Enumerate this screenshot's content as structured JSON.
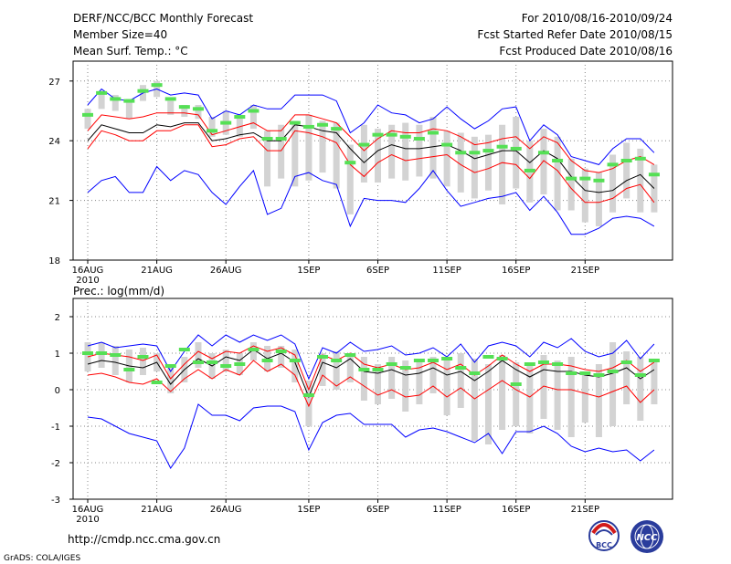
{
  "header": {
    "title": "DERF/NCC/BCC Monthly Forecast",
    "member_size": "Member Size=40",
    "variable": "Mean Surf. Temp.: °C",
    "period": "For 2010/08/16-2010/09/24",
    "started": "Fcst Started Refer Date 2010/08/15",
    "produced": "Fcst Produced Date 2010/08/16"
  },
  "footer": {
    "url": "http://cmdp.ncc.cma.gov.cn",
    "credit": "GrADS: COLA/IGES",
    "logo_bcc": "BCC",
    "logo_ncc": "NCC"
  },
  "colors": {
    "box": "#d3d3d3",
    "member": "#55e055",
    "mean": "#000000",
    "inner": "#ff0000",
    "outer": "#0000ff",
    "grid": "#888888"
  },
  "chart_data": [
    {
      "type": "line",
      "title": "Mean Surf. Temp.: °C",
      "x_tick_labels": [
        "16AUG",
        "21AUG",
        "26AUG",
        "1SEP",
        "6SEP",
        "11SEP",
        "16SEP",
        "21SEP"
      ],
      "x_tick_days": [
        0,
        5,
        10,
        16,
        21,
        26,
        31,
        36
      ],
      "x_year_label": "2010",
      "ylim": [
        18,
        28
      ],
      "yticks": [
        18,
        21,
        24,
        27
      ],
      "series": [
        {
          "name": "ensemble mean",
          "values": [
            24.0,
            24.8,
            24.6,
            24.4,
            24.4,
            24.8,
            24.7,
            24.9,
            24.9,
            24.0,
            24.1,
            24.3,
            24.4,
            24.0,
            24.0,
            24.8,
            24.7,
            24.5,
            24.4,
            23.6,
            22.9,
            23.5,
            23.8,
            23.6,
            23.6,
            23.7,
            23.8,
            23.5,
            23.1,
            23.3,
            23.5,
            23.5,
            22.9,
            23.5,
            23.1,
            22.2,
            21.5,
            21.4,
            21.5,
            22.0,
            22.3,
            21.6
          ]
        },
        {
          "name": "upper inner",
          "values": [
            24.5,
            25.3,
            25.2,
            25.1,
            25.2,
            25.4,
            25.4,
            25.4,
            25.3,
            24.3,
            24.5,
            24.7,
            24.9,
            24.5,
            24.5,
            25.3,
            25.3,
            25.1,
            24.9,
            24.2,
            23.5,
            24.1,
            24.5,
            24.4,
            24.4,
            24.6,
            24.5,
            24.2,
            23.8,
            23.9,
            24.1,
            24.2,
            23.6,
            24.2,
            23.9,
            23.0,
            22.5,
            22.4,
            22.6,
            23.0,
            23.2,
            22.8
          ]
        },
        {
          "name": "lower inner",
          "values": [
            23.6,
            24.5,
            24.3,
            24.0,
            24.0,
            24.5,
            24.5,
            24.8,
            24.8,
            23.7,
            23.8,
            24.1,
            24.2,
            23.5,
            23.5,
            24.5,
            24.4,
            24.2,
            23.9,
            22.8,
            22.2,
            22.9,
            23.3,
            23.0,
            23.1,
            23.2,
            23.3,
            22.8,
            22.4,
            22.6,
            22.9,
            22.8,
            22.1,
            23.0,
            22.5,
            21.6,
            20.9,
            20.9,
            21.1,
            21.6,
            21.8,
            20.9
          ]
        },
        {
          "name": "upper outer",
          "values": [
            25.8,
            26.6,
            26.1,
            26.0,
            26.4,
            26.6,
            26.3,
            26.4,
            26.3,
            25.1,
            25.5,
            25.3,
            25.8,
            25.6,
            25.6,
            26.3,
            26.3,
            26.3,
            26.0,
            24.4,
            24.9,
            25.8,
            25.4,
            25.3,
            24.9,
            25.1,
            25.7,
            25.1,
            24.6,
            25.0,
            25.6,
            25.7,
            24.0,
            24.8,
            24.3,
            23.2,
            23.0,
            22.8,
            23.6,
            24.1,
            24.1,
            23.4
          ]
        },
        {
          "name": "lower outer",
          "values": [
            21.4,
            22.0,
            22.2,
            21.4,
            21.4,
            22.7,
            22.0,
            22.5,
            22.3,
            21.4,
            20.8,
            21.7,
            22.5,
            20.3,
            20.6,
            22.2,
            22.4,
            22.0,
            21.8,
            19.7,
            21.1,
            21.0,
            21.0,
            20.9,
            21.6,
            22.5,
            21.5,
            20.7,
            20.9,
            21.1,
            21.2,
            21.4,
            20.5,
            21.2,
            20.4,
            19.3,
            19.3,
            19.6,
            20.1,
            20.2,
            20.1,
            19.7
          ]
        },
        {
          "name": "member",
          "values": [
            25.3,
            26.4,
            26.1,
            26.0,
            26.5,
            26.8,
            26.1,
            25.7,
            25.6,
            24.5,
            24.9,
            25.2,
            25.5,
            24.1,
            24.1,
            24.9,
            24.7,
            24.8,
            24.6,
            22.9,
            23.8,
            24.3,
            24.3,
            24.2,
            24.1,
            24.4,
            23.8,
            23.4,
            23.4,
            23.5,
            23.7,
            23.6,
            22.5,
            23.4,
            23.0,
            22.1,
            22.1,
            22.0,
            22.8,
            23.0,
            23.1,
            22.3
          ]
        }
      ],
      "boxes": [
        [
          24.6,
          25.6
        ],
        [
          25.6,
          26.5
        ],
        [
          25.5,
          26.3
        ],
        [
          25.1,
          26.1
        ],
        [
          26.0,
          26.8
        ],
        [
          26.2,
          27.0
        ],
        [
          25.3,
          26.0
        ],
        [
          25.2,
          25.8
        ],
        [
          25.1,
          25.8
        ],
        [
          24.2,
          25.2
        ],
        [
          24.3,
          25.5
        ],
        [
          24.2,
          25.3
        ],
        [
          24.6,
          25.8
        ],
        [
          21.7,
          24.5
        ],
        [
          22.1,
          24.8
        ],
        [
          21.7,
          25.0
        ],
        [
          22.0,
          25.3
        ],
        [
          22.4,
          25.0
        ],
        [
          21.6,
          24.9
        ],
        [
          20.3,
          23.8
        ],
        [
          21.9,
          24.8
        ],
        [
          21.9,
          24.6
        ],
        [
          22.1,
          24.8
        ],
        [
          22.0,
          24.9
        ],
        [
          22.2,
          24.8
        ],
        [
          22.1,
          25.2
        ],
        [
          21.7,
          24.5
        ],
        [
          21.4,
          24.4
        ],
        [
          21.1,
          24.2
        ],
        [
          21.5,
          24.3
        ],
        [
          20.8,
          24.8
        ],
        [
          21.6,
          25.2
        ],
        [
          20.9,
          24.0
        ],
        [
          21.3,
          24.6
        ],
        [
          20.5,
          24.2
        ],
        [
          20.5,
          23.1
        ],
        [
          19.9,
          22.6
        ],
        [
          19.7,
          22.4
        ],
        [
          20.4,
          23.3
        ],
        [
          21.1,
          23.9
        ],
        [
          20.4,
          23.6
        ],
        [
          20.4,
          22.8
        ]
      ]
    },
    {
      "type": "line",
      "title": "Prec.: log(mm/d)",
      "x_tick_labels": [
        "16AUG",
        "21AUG",
        "26AUG",
        "1SEP",
        "6SEP",
        "11SEP",
        "16SEP",
        "21SEP"
      ],
      "x_tick_days": [
        0,
        5,
        10,
        16,
        21,
        26,
        31,
        36
      ],
      "x_year_label": "2010",
      "ylim": [
        -3,
        2.5
      ],
      "yticks": [
        -3,
        -2,
        -1,
        0,
        1,
        2
      ],
      "series": [
        {
          "name": "ensemble mean",
          "values": [
            0.7,
            0.8,
            0.75,
            0.65,
            0.6,
            0.75,
            0.15,
            0.55,
            0.85,
            0.65,
            0.9,
            0.8,
            1.1,
            0.85,
            1.0,
            0.75,
            -0.2,
            0.75,
            0.6,
            0.85,
            0.5,
            0.45,
            0.55,
            0.4,
            0.45,
            0.6,
            0.4,
            0.5,
            0.25,
            0.5,
            0.8,
            0.55,
            0.35,
            0.55,
            0.5,
            0.5,
            0.4,
            0.35,
            0.45,
            0.6,
            0.3,
            0.55
          ]
        },
        {
          "name": "upper inner",
          "values": [
            0.9,
            1.0,
            0.95,
            0.9,
            0.8,
            0.95,
            0.3,
            0.7,
            1.05,
            0.85,
            1.05,
            1.0,
            1.2,
            1.05,
            1.15,
            0.95,
            0.0,
            0.95,
            0.8,
            1.0,
            0.7,
            0.6,
            0.7,
            0.55,
            0.6,
            0.75,
            0.55,
            0.7,
            0.4,
            0.65,
            0.95,
            0.7,
            0.5,
            0.7,
            0.7,
            0.65,
            0.55,
            0.5,
            0.6,
            0.8,
            0.5,
            0.75
          ]
        },
        {
          "name": "lower inner",
          "values": [
            0.4,
            0.45,
            0.35,
            0.2,
            0.15,
            0.3,
            -0.05,
            0.3,
            0.55,
            0.3,
            0.55,
            0.4,
            0.8,
            0.5,
            0.7,
            0.4,
            -0.45,
            0.4,
            0.1,
            0.35,
            0.1,
            -0.15,
            0.0,
            -0.2,
            -0.15,
            0.1,
            -0.2,
            0.05,
            -0.25,
            0.0,
            0.25,
            0.0,
            -0.2,
            0.1,
            0.0,
            0.0,
            -0.1,
            -0.2,
            -0.05,
            0.1,
            -0.35,
            0.0
          ]
        },
        {
          "name": "upper outer",
          "values": [
            1.2,
            1.3,
            1.15,
            1.2,
            1.25,
            1.2,
            0.5,
            1.05,
            1.5,
            1.2,
            1.5,
            1.3,
            1.5,
            1.35,
            1.5,
            1.25,
            0.3,
            1.15,
            1.0,
            1.3,
            1.05,
            1.1,
            1.2,
            0.95,
            1.0,
            1.15,
            0.9,
            1.25,
            0.75,
            1.2,
            1.3,
            1.2,
            0.9,
            1.3,
            1.15,
            1.4,
            1.05,
            0.9,
            1.0,
            1.35,
            0.85,
            1.25
          ]
        },
        {
          "name": "lower outer",
          "values": [
            -0.75,
            -0.8,
            -1.0,
            -1.2,
            -1.3,
            -1.4,
            -2.15,
            -1.6,
            -0.4,
            -0.7,
            -0.7,
            -0.85,
            -0.5,
            -0.45,
            -0.45,
            -0.6,
            -1.65,
            -0.9,
            -0.7,
            -0.65,
            -0.95,
            -0.95,
            -0.95,
            -1.3,
            -1.1,
            -1.05,
            -1.15,
            -1.3,
            -1.45,
            -1.2,
            -1.75,
            -1.15,
            -1.15,
            -1.0,
            -1.2,
            -1.55,
            -1.7,
            -1.6,
            -1.7,
            -1.65,
            -1.95,
            -1.65
          ]
        },
        {
          "name": "member",
          "values": [
            1.0,
            1.0,
            0.95,
            0.55,
            0.9,
            0.2,
            0.65,
            1.1,
            0.75,
            0.75,
            0.65,
            0.7,
            1.1,
            0.8,
            1.05,
            0.8,
            -0.15,
            0.9,
            0.8,
            0.95,
            0.55,
            0.55,
            0.7,
            0.6,
            0.8,
            0.8,
            0.85,
            0.6,
            0.45,
            0.9,
            0.85,
            0.15,
            0.7,
            0.75,
            0.7,
            0.45,
            0.45,
            0.4,
            0.5,
            0.75,
            0.4,
            0.8
          ]
        }
      ],
      "boxes": [
        [
          0.5,
          1.3
        ],
        [
          0.6,
          1.3
        ],
        [
          0.4,
          1.2
        ],
        [
          0.2,
          1.1
        ],
        [
          0.4,
          1.15
        ],
        [
          0.5,
          1.0
        ],
        [
          -0.1,
          0.6
        ],
        [
          0.2,
          0.9
        ],
        [
          0.6,
          1.3
        ],
        [
          0.3,
          1.0
        ],
        [
          0.5,
          1.1
        ],
        [
          0.4,
          1.0
        ],
        [
          0.8,
          1.3
        ],
        [
          0.5,
          1.2
        ],
        [
          0.6,
          1.2
        ],
        [
          0.2,
          1.1
        ],
        [
          -1.0,
          0.25
        ],
        [
          0.1,
          1.0
        ],
        [
          0.0,
          1.05
        ],
        [
          0.2,
          1.0
        ],
        [
          -0.3,
          0.9
        ],
        [
          -0.4,
          0.7
        ],
        [
          -0.25,
          0.9
        ],
        [
          -0.6,
          0.8
        ],
        [
          -0.4,
          0.75
        ],
        [
          -0.1,
          0.9
        ],
        [
          -0.7,
          0.9
        ],
        [
          -0.5,
          1.0
        ],
        [
          -1.4,
          0.85
        ],
        [
          -1.5,
          0.7
        ],
        [
          -1.1,
          0.95
        ],
        [
          -1.0,
          0.75
        ],
        [
          -1.2,
          0.7
        ],
        [
          -0.8,
          0.95
        ],
        [
          -1.1,
          0.8
        ],
        [
          -1.3,
          0.9
        ],
        [
          -0.9,
          0.5
        ],
        [
          -1.3,
          0.7
        ],
        [
          -1.0,
          1.3
        ],
        [
          -0.4,
          1.05
        ],
        [
          -0.85,
          0.9
        ],
        [
          -0.4,
          0.85
        ]
      ]
    }
  ]
}
